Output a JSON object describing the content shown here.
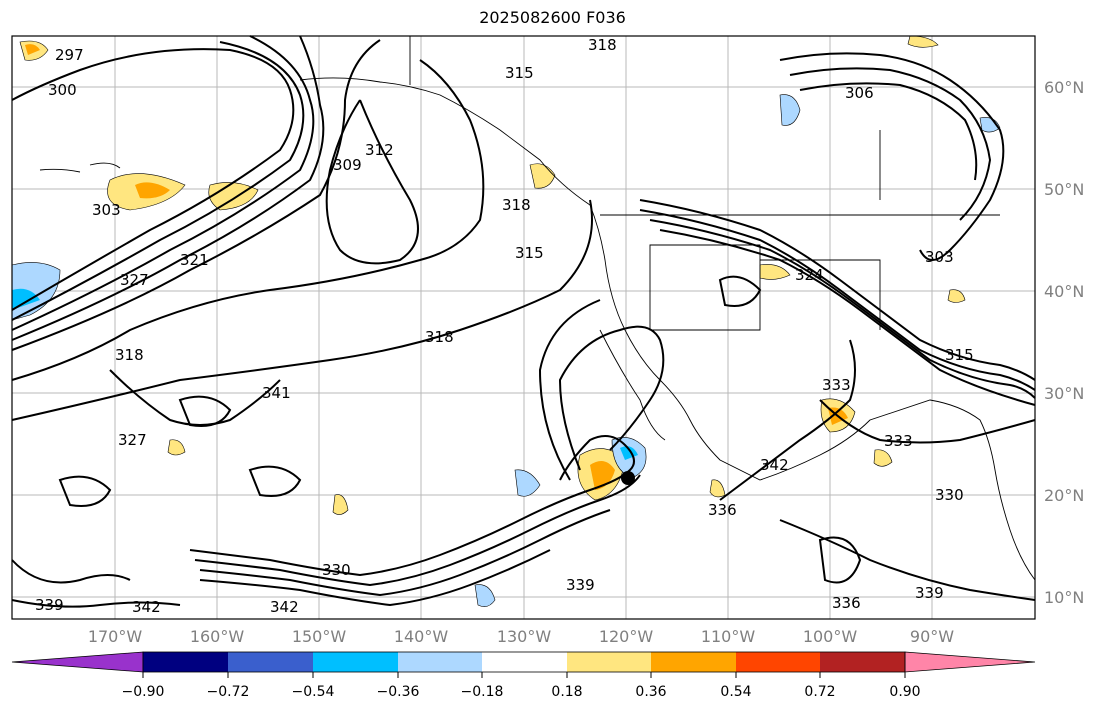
{
  "title": "2025082600 F036",
  "map": {
    "lat_labels": [
      "60°N",
      "50°N",
      "40°N",
      "30°N",
      "20°N",
      "10°N"
    ],
    "lon_labels": [
      "170°W",
      "160°W",
      "150°W",
      "140°W",
      "130°W",
      "120°W",
      "110°W",
      "100°W",
      "90°W"
    ],
    "contour_labels": [
      "297",
      "300",
      "303",
      "303",
      "306",
      "309",
      "312",
      "315",
      "315",
      "315",
      "318",
      "318",
      "318",
      "318",
      "321",
      "324",
      "327",
      "327",
      "330",
      "330",
      "333",
      "333",
      "336",
      "336",
      "339",
      "339",
      "339",
      "341",
      "342",
      "342",
      "342"
    ]
  },
  "colorbar": {
    "ticks": [
      "−0.90",
      "−0.72",
      "−0.54",
      "−0.36",
      "−0.18",
      "0.18",
      "0.36",
      "0.54",
      "0.72",
      "0.90"
    ],
    "colors": [
      "#9932cc",
      "#000080",
      "#3a5fcd",
      "#00bfff",
      "#add8ff",
      "#ffffff",
      "#ffe680",
      "#ffa500",
      "#ff4500",
      "#b22222",
      "#ff85a8"
    ]
  }
}
